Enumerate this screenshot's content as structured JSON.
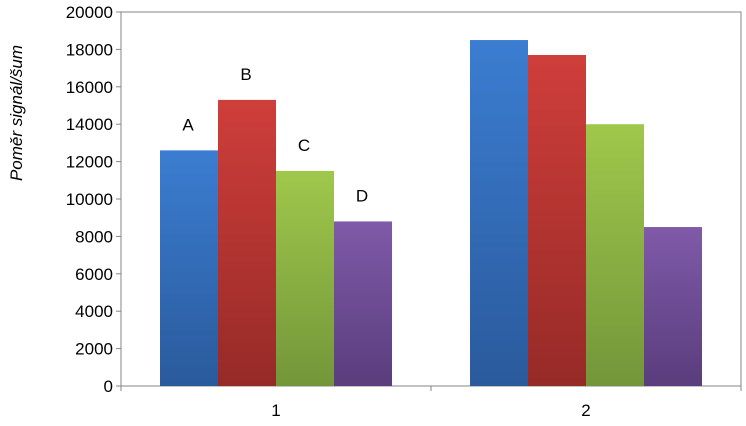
{
  "chart_data": {
    "type": "bar",
    "categories": [
      "1",
      "2"
    ],
    "series": [
      {
        "values": [
          12600,
          18500
        ],
        "color": "#3b7dd1",
        "color_dark": "#2a5a9c",
        "annotation": "A"
      },
      {
        "values": [
          15300,
          17700
        ],
        "color": "#cf3e3b",
        "color_dark": "#962a27",
        "annotation": "B"
      },
      {
        "values": [
          11500,
          14000
        ],
        "color": "#9fc84b",
        "color_dark": "#73963a",
        "annotation": "C"
      },
      {
        "values": [
          8800,
          8500
        ],
        "color": "#7f5aa8",
        "color_dark": "#5a3d7d",
        "annotation": "D"
      }
    ],
    "ylabel": "Poměr signál/šum",
    "ylim": [
      0,
      20000
    ],
    "yticks": [
      0,
      2000,
      4000,
      6000,
      8000,
      10000,
      12000,
      14000,
      16000,
      18000,
      20000
    ],
    "grid": false,
    "legend": "none"
  }
}
